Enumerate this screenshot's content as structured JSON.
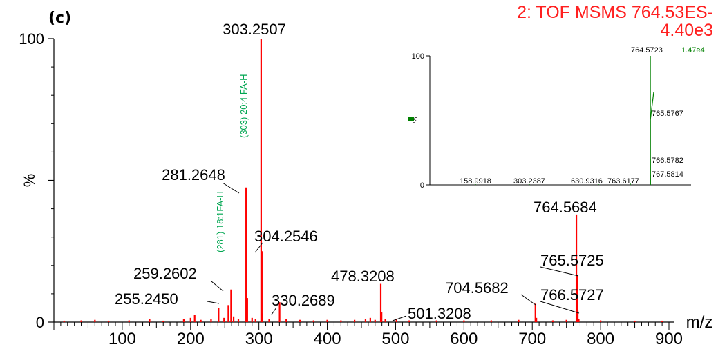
{
  "panel_label": "(c)",
  "header": {
    "line1": "2: TOF MSMS 764.53ES-",
    "line2": "4.40e3"
  },
  "chart_data": [
    {
      "type": "bar",
      "subtype": "mass-spectrum",
      "xlabel": "m/z",
      "ylabel": "%",
      "xlim": [
        0,
        900
      ],
      "ylim": [
        0,
        100
      ],
      "xticks": [
        100,
        200,
        300,
        400,
        500,
        600,
        700,
        800,
        900
      ],
      "yticks": [
        0,
        50,
        100
      ],
      "ytick_labels": [
        "0",
        "%",
        "100"
      ],
      "peak_color": "#ff0000",
      "peaks": [
        {
          "mz": 15,
          "intensity": 0.5
        },
        {
          "mz": 40,
          "intensity": 0.6
        },
        {
          "mz": 60,
          "intensity": 0.8
        },
        {
          "mz": 80,
          "intensity": 0.5
        },
        {
          "mz": 110,
          "intensity": 0.6
        },
        {
          "mz": 140,
          "intensity": 1.2
        },
        {
          "mz": 160,
          "intensity": 0.5
        },
        {
          "mz": 190,
          "intensity": 1.0
        },
        {
          "mz": 200,
          "intensity": 1.5
        },
        {
          "mz": 206,
          "intensity": 2.5
        },
        {
          "mz": 215,
          "intensity": 0.8
        },
        {
          "mz": 230,
          "intensity": 1.0
        },
        {
          "mz": 241,
          "intensity": 5.0
        },
        {
          "mz": 249,
          "intensity": 1.5
        },
        {
          "mz": 255.245,
          "intensity": 6.0,
          "label": "255.2450"
        },
        {
          "mz": 259.2602,
          "intensity": 11.5,
          "label": "259.2602"
        },
        {
          "mz": 263,
          "intensity": 2.0
        },
        {
          "mz": 270,
          "intensity": 1.0
        },
        {
          "mz": 281.2648,
          "intensity": 47.5,
          "label": "281.2648"
        },
        {
          "mz": 283,
          "intensity": 8.5
        },
        {
          "mz": 290,
          "intensity": 1.5
        },
        {
          "mz": 295,
          "intensity": 1.0
        },
        {
          "mz": 303.2507,
          "intensity": 100,
          "label": "303.2507"
        },
        {
          "mz": 304.2546,
          "intensity": 25,
          "label": "304.2546"
        },
        {
          "mz": 305,
          "intensity": 3.0
        },
        {
          "mz": 315,
          "intensity": 1.0
        },
        {
          "mz": 330.2689,
          "intensity": 7.0,
          "label": "330.2689"
        },
        {
          "mz": 340,
          "intensity": 1.0
        },
        {
          "mz": 360,
          "intensity": 0.8
        },
        {
          "mz": 380,
          "intensity": 0.6
        },
        {
          "mz": 400,
          "intensity": 0.8
        },
        {
          "mz": 420,
          "intensity": 0.6
        },
        {
          "mz": 440,
          "intensity": 0.8
        },
        {
          "mz": 456,
          "intensity": 1.0
        },
        {
          "mz": 463,
          "intensity": 1.5
        },
        {
          "mz": 470,
          "intensity": 0.8
        },
        {
          "mz": 478.3208,
          "intensity": 13.5,
          "label": "478.3208"
        },
        {
          "mz": 479.5,
          "intensity": 3.5
        },
        {
          "mz": 485,
          "intensity": 1.0
        },
        {
          "mz": 501.3208,
          "intensity": 1.0,
          "label": "501.3208"
        },
        {
          "mz": 520,
          "intensity": 0.6
        },
        {
          "mz": 560,
          "intensity": 0.6
        },
        {
          "mz": 600,
          "intensity": 0.6
        },
        {
          "mz": 640,
          "intensity": 0.6
        },
        {
          "mz": 680,
          "intensity": 0.8
        },
        {
          "mz": 704.5682,
          "intensity": 6.5,
          "label": "704.5682"
        },
        {
          "mz": 706,
          "intensity": 1.5
        },
        {
          "mz": 730,
          "intensity": 0.6
        },
        {
          "mz": 750,
          "intensity": 0.8
        },
        {
          "mz": 764.5684,
          "intensity": 38,
          "label": "764.5684"
        },
        {
          "mz": 765.5725,
          "intensity": 16.5,
          "label": "765.5725"
        },
        {
          "mz": 766.5727,
          "intensity": 4.0,
          "label": "766.5727"
        },
        {
          "mz": 768,
          "intensity": 1.0
        },
        {
          "mz": 800,
          "intensity": 0.6
        },
        {
          "mz": 850,
          "intensity": 0.5
        },
        {
          "mz": 890,
          "intensity": 0.5
        }
      ],
      "annotations": [
        {
          "text": "(303) 20:4 FA-H",
          "mz": 303,
          "color": "#00a651"
        },
        {
          "text": "(281) 18:1FA-H",
          "mz": 281,
          "color": "#00a651"
        }
      ]
    },
    {
      "type": "bar",
      "subtype": "mass-spectrum-inset",
      "ylabel": "%",
      "ylim": [
        0,
        100
      ],
      "yticks": [
        0,
        100
      ],
      "intensity_label": "1.47e4",
      "peak_color": "#008000",
      "peaks": [
        {
          "mz": 158.9918,
          "intensity": 0.5,
          "label": "158.9918"
        },
        {
          "mz": 303.2387,
          "intensity": 0.5,
          "label": "303.2387"
        },
        {
          "mz": 630.9316,
          "intensity": 0.5,
          "label": "630.9316"
        },
        {
          "mz": 763.6177,
          "intensity": 1.0,
          "label": "763.6177"
        },
        {
          "mz": 764.5723,
          "intensity": 100,
          "label": "764.5723"
        },
        {
          "mz": 765.5767,
          "intensity": 50,
          "label": "765.5767"
        },
        {
          "mz": 766.5782,
          "intensity": 20,
          "label": "766.5782"
        },
        {
          "mz": 767.5814,
          "intensity": 8,
          "label": "767.5814"
        }
      ]
    }
  ]
}
